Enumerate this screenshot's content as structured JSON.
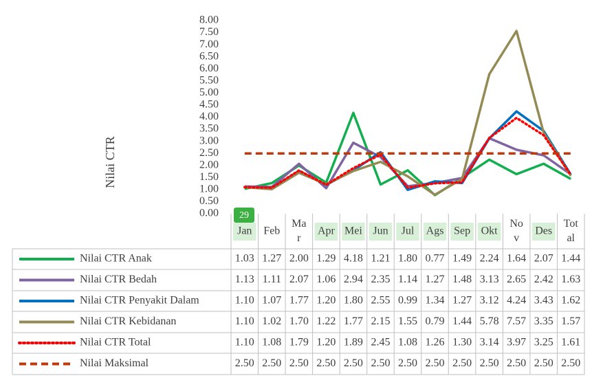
{
  "chart_data": {
    "type": "line",
    "y_axis_label": "Nilai CTR",
    "badge": "29",
    "categories": [
      "Jan",
      "Feb",
      "Mar",
      "Apr",
      "Mei",
      "Jun",
      "Jul",
      "Ags",
      "Sep",
      "Okt",
      "Nov",
      "Des",
      "Total"
    ],
    "ylim": [
      0,
      8
    ],
    "yticks": [
      {
        "value": 0,
        "label": "0.00"
      },
      {
        "value": 0.5,
        "label": "0.50"
      },
      {
        "value": 1,
        "label": "1.00"
      },
      {
        "value": 1.5,
        "label": "1.50"
      },
      {
        "value": 2,
        "label": "2.00"
      },
      {
        "value": 2.5,
        "label": "2.50"
      },
      {
        "value": 3,
        "label": "3.00"
      },
      {
        "value": 3.5,
        "label": "3.50"
      },
      {
        "value": 4,
        "label": "4.00"
      },
      {
        "value": 4.5,
        "label": "4.50"
      },
      {
        "value": 5,
        "label": "5.00"
      },
      {
        "value": 5.5,
        "label": "5.50"
      },
      {
        "value": 6,
        "label": "6.00"
      },
      {
        "value": 6.5,
        "label": "6.50"
      },
      {
        "value": 7,
        "label": "7.00"
      },
      {
        "value": 7.5,
        "label": "7.50"
      },
      {
        "value": 8,
        "label": "8.00"
      }
    ],
    "series": [
      {
        "name": "Nilai CTR Anak",
        "color": "#13ae4f",
        "dash": "solid",
        "values": [
          1.03,
          1.27,
          2.0,
          1.29,
          4.18,
          1.21,
          1.8,
          0.77,
          1.49,
          2.24,
          1.64,
          2.07,
          1.44
        ],
        "value_labels": [
          "1.03",
          "1.27",
          "2.00",
          "1.29",
          "4.18",
          "1.21",
          "1.80",
          "0.77",
          "1.49",
          "2.24",
          "1.64",
          "2.07",
          "1.44"
        ]
      },
      {
        "name": "Nilai CTR Bedah",
        "color": "#8064a2",
        "dash": "solid",
        "values": [
          1.13,
          1.11,
          2.07,
          1.06,
          2.94,
          2.35,
          1.14,
          1.27,
          1.48,
          3.13,
          2.65,
          2.42,
          1.63
        ],
        "value_labels": [
          "1.13",
          "1.11",
          "2.07",
          "1.06",
          "2.94",
          "2.35",
          "1.14",
          "1.27",
          "1.48",
          "3.13",
          "2.65",
          "2.42",
          "1.63"
        ]
      },
      {
        "name": "Nilai CTR Penyakit Dalam",
        "color": "#0070c0",
        "dash": "solid",
        "values": [
          1.1,
          1.07,
          1.77,
          1.2,
          1.8,
          2.55,
          0.99,
          1.34,
          1.27,
          3.12,
          4.24,
          3.43,
          1.62
        ],
        "value_labels": [
          "1.10",
          "1.07",
          "1.77",
          "1.20",
          "1.80",
          "2.55",
          "0.99",
          "1.34",
          "1.27",
          "3.12",
          "4.24",
          "3.43",
          "1.62"
        ]
      },
      {
        "name": "Nilai CTR Kebidanan",
        "color": "#948a54",
        "dash": "solid",
        "values": [
          1.1,
          1.02,
          1.7,
          1.22,
          1.77,
          2.15,
          1.55,
          0.79,
          1.44,
          5.78,
          7.57,
          3.35,
          1.57
        ],
        "value_labels": [
          "1.10",
          "1.02",
          "1.70",
          "1.22",
          "1.77",
          "2.15",
          "1.55",
          "0.79",
          "1.44",
          "5.78",
          "7.57",
          "3.35",
          "1.57"
        ]
      },
      {
        "name": "Nilai CTR Total",
        "color": "#ff0000",
        "dash": "dot",
        "values": [
          1.1,
          1.08,
          1.79,
          1.2,
          1.89,
          2.45,
          1.08,
          1.26,
          1.3,
          3.14,
          3.97,
          3.25,
          1.61
        ],
        "value_labels": [
          "1.10",
          "1.08",
          "1.79",
          "1.20",
          "1.89",
          "2.45",
          "1.08",
          "1.26",
          "1.30",
          "3.14",
          "3.97",
          "3.25",
          "1.61"
        ]
      },
      {
        "name": "Nilai Maksimal",
        "color": "#c0390b",
        "dash": "dash",
        "values": [
          2.5,
          2.5,
          2.5,
          2.5,
          2.5,
          2.5,
          2.5,
          2.5,
          2.5,
          2.5,
          2.5,
          2.5,
          2.5
        ],
        "value_labels": [
          "2.50",
          "2.50",
          "2.50",
          "2.50",
          "2.50",
          "2.50",
          "2.50",
          "2.50",
          "2.50",
          "2.50",
          "2.50",
          "2.50",
          "2.50"
        ]
      }
    ]
  }
}
